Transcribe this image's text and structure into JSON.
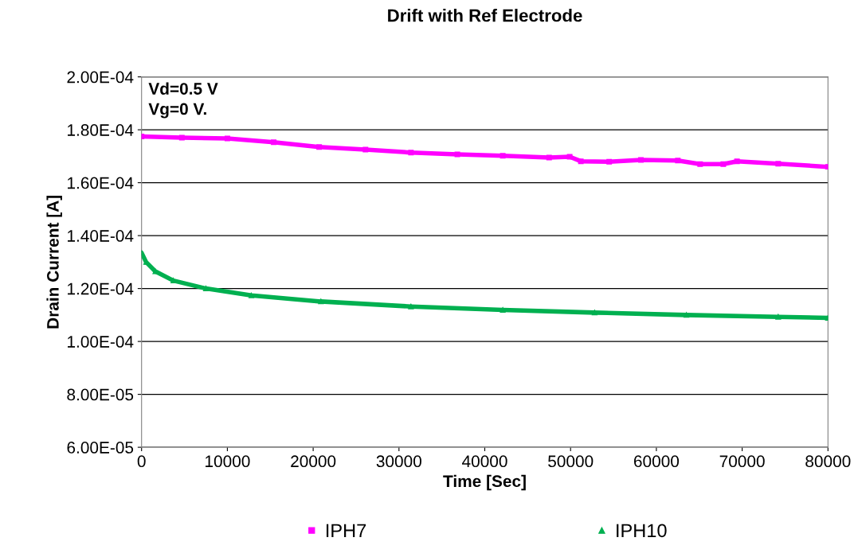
{
  "chart_data": {
    "type": "line",
    "title": "Drift with Ref Electrode",
    "xlabel": "Time [Sec]",
    "ylabel": "Drain Current [A]",
    "annotations": [
      "Vd=0.5 V\nVg=0 V."
    ],
    "xlim": [
      0,
      80000
    ],
    "xticks": [
      0,
      10000,
      20000,
      30000,
      40000,
      50000,
      60000,
      70000,
      80000
    ],
    "ylim": [
      6e-05,
      0.0002
    ],
    "yticks": [
      {
        "value": 6e-05,
        "label": "6.00E-05"
      },
      {
        "value": 8e-05,
        "label": "8.00E-05"
      },
      {
        "value": 0.0001,
        "label": "1.00E-04"
      },
      {
        "value": 0.00012,
        "label": "1.20E-04"
      },
      {
        "value": 0.00014,
        "label": "1.40E-04"
      },
      {
        "value": 0.00016,
        "label": "1.60E-04"
      },
      {
        "value": 0.00018,
        "label": "1.80E-04"
      },
      {
        "value": 0.0002,
        "label": "2.00E-04"
      }
    ],
    "grid": "y",
    "legend": "bottom",
    "series": [
      {
        "name": "IPH7",
        "color": "#ff00ff",
        "marker": "square",
        "x": [
          0,
          4700,
          10000,
          15400,
          20700,
          26100,
          31400,
          36800,
          42100,
          47500,
          49900,
          51200,
          54500,
          58200,
          62500,
          65100,
          67800,
          69400,
          74200,
          80000
        ],
        "values": [
          0.0001775,
          0.000177,
          0.0001767,
          0.0001753,
          0.0001735,
          0.0001725,
          0.0001714,
          0.0001707,
          0.0001702,
          0.0001695,
          0.0001698,
          0.0001681,
          0.0001679,
          0.0001686,
          0.0001684,
          0.000167,
          0.000167,
          0.0001681,
          0.0001672,
          0.000166
        ]
      },
      {
        "name": "IPH10",
        "color": "#00b050",
        "marker": "triangle",
        "x": [
          0,
          530,
          1600,
          3700,
          7500,
          12800,
          20900,
          31400,
          42100,
          52800,
          63500,
          74200,
          80000
        ],
        "values": [
          0.0001335,
          0.00013,
          0.0001265,
          0.000123,
          0.00012,
          0.0001174,
          0.0001151,
          0.0001132,
          0.0001119,
          0.0001109,
          0.00011,
          0.0001093,
          0.0001089
        ]
      }
    ]
  }
}
